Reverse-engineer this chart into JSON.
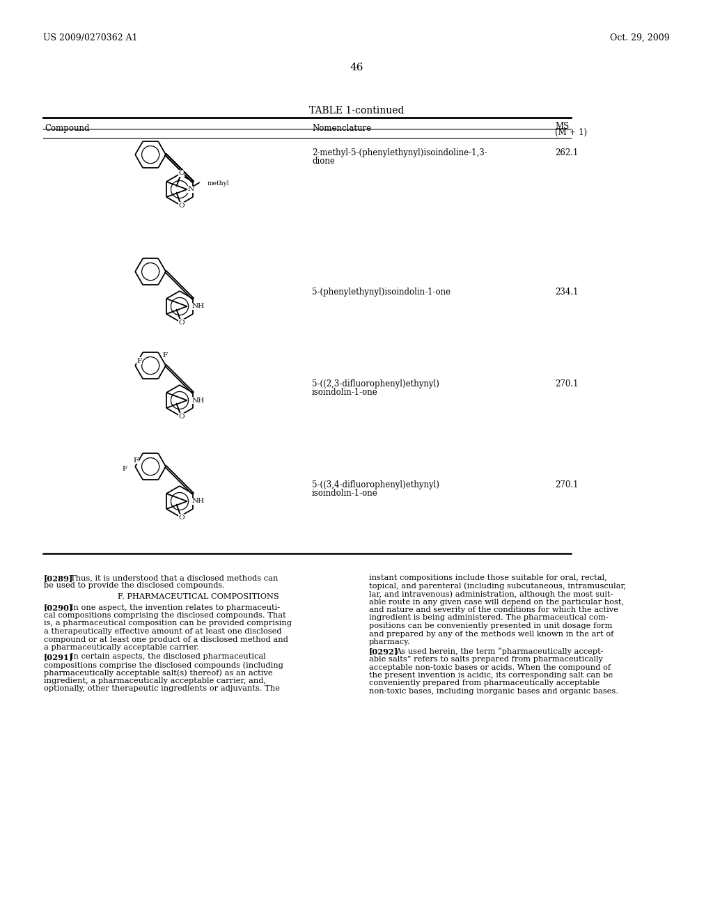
{
  "background": "#ffffff",
  "header_left": "US 2009/0270362 A1",
  "header_right": "Oct. 29, 2009",
  "page_number": "46",
  "table_title": "TABLE 1-continued",
  "col_compound": "Compound",
  "col_nomenclature": "Nomenclature",
  "col_ms_top": "MS",
  "col_ms_bot": "(M + 1)",
  "row1_nom1": "2-methyl-5-(phenylethynyl)isoindoline-1,3-",
  "row1_nom2": "dione",
  "row1_ms": "262.1",
  "row2_nom": "5-(phenylethynyl)isoindolin-1-one",
  "row2_ms": "234.1",
  "row3_nom1": "5-((2,3-difluorophenyl)ethynyl)",
  "row3_nom2": "isoindolin-1-one",
  "row3_ms": "270.1",
  "row4_nom1": "5-((3,4-difluorophenyl)ethynyl)",
  "row4_nom2": "isoindolin-1-one",
  "row4_ms": "270.1",
  "p0289_l": "[0289]",
  "p0289_t": "Thus, it is understood that a disclosed methods can",
  "p0289_t2": "be used to provide the disclosed compounds.",
  "sec_title": "F. PHARMACEUTICAL COMPOSITIONS",
  "p0290_l": "[0290]",
  "p0290_lines": [
    "In one aspect, the invention relates to pharmaceuti-",
    "cal compositions comprising the disclosed compounds. That",
    "is, a pharmaceutical composition can be provided comprising",
    "a therapeutically effective amount of at least one disclosed",
    "compound or at least one product of a disclosed method and",
    "a pharmaceutically acceptable carrier."
  ],
  "p0291_l": "[0291]",
  "p0291_lines": [
    "In certain aspects, the disclosed pharmaceutical",
    "compositions comprise the disclosed compounds (including",
    "pharmaceutically acceptable salt(s) thereof) as an active",
    "ingredient, a pharmaceutically acceptable carrier, and,",
    "optionally, other therapeutic ingredients or adjuvants. The"
  ],
  "right_col_lines": [
    "instant compositions include those suitable for oral, rectal,",
    "topical, and parenteral (including subcutaneous, intramuscular,",
    "lar, and intravenous) administration, although the most suit-",
    "able route in any given case will depend on the particular host,",
    "and nature and severity of the conditions for which the active",
    "ingredient is being administered. The pharmaceutical com-",
    "positions can be conveniently presented in unit dosage form",
    "and prepared by any of the methods well known in the art of",
    "pharmacy."
  ],
  "p0292_l": "[0292]",
  "p0292_lines": [
    "As used herein, the term “pharmaceutically accept-",
    "able salts” refers to salts prepared from pharmaceutically",
    "acceptable non-toxic bases or acids. When the compound of",
    "the present invention is acidic, its corresponding salt can be",
    "conveniently prepared from pharmaceutically acceptable",
    "non-toxic bases, including inorganic bases and organic bases."
  ]
}
